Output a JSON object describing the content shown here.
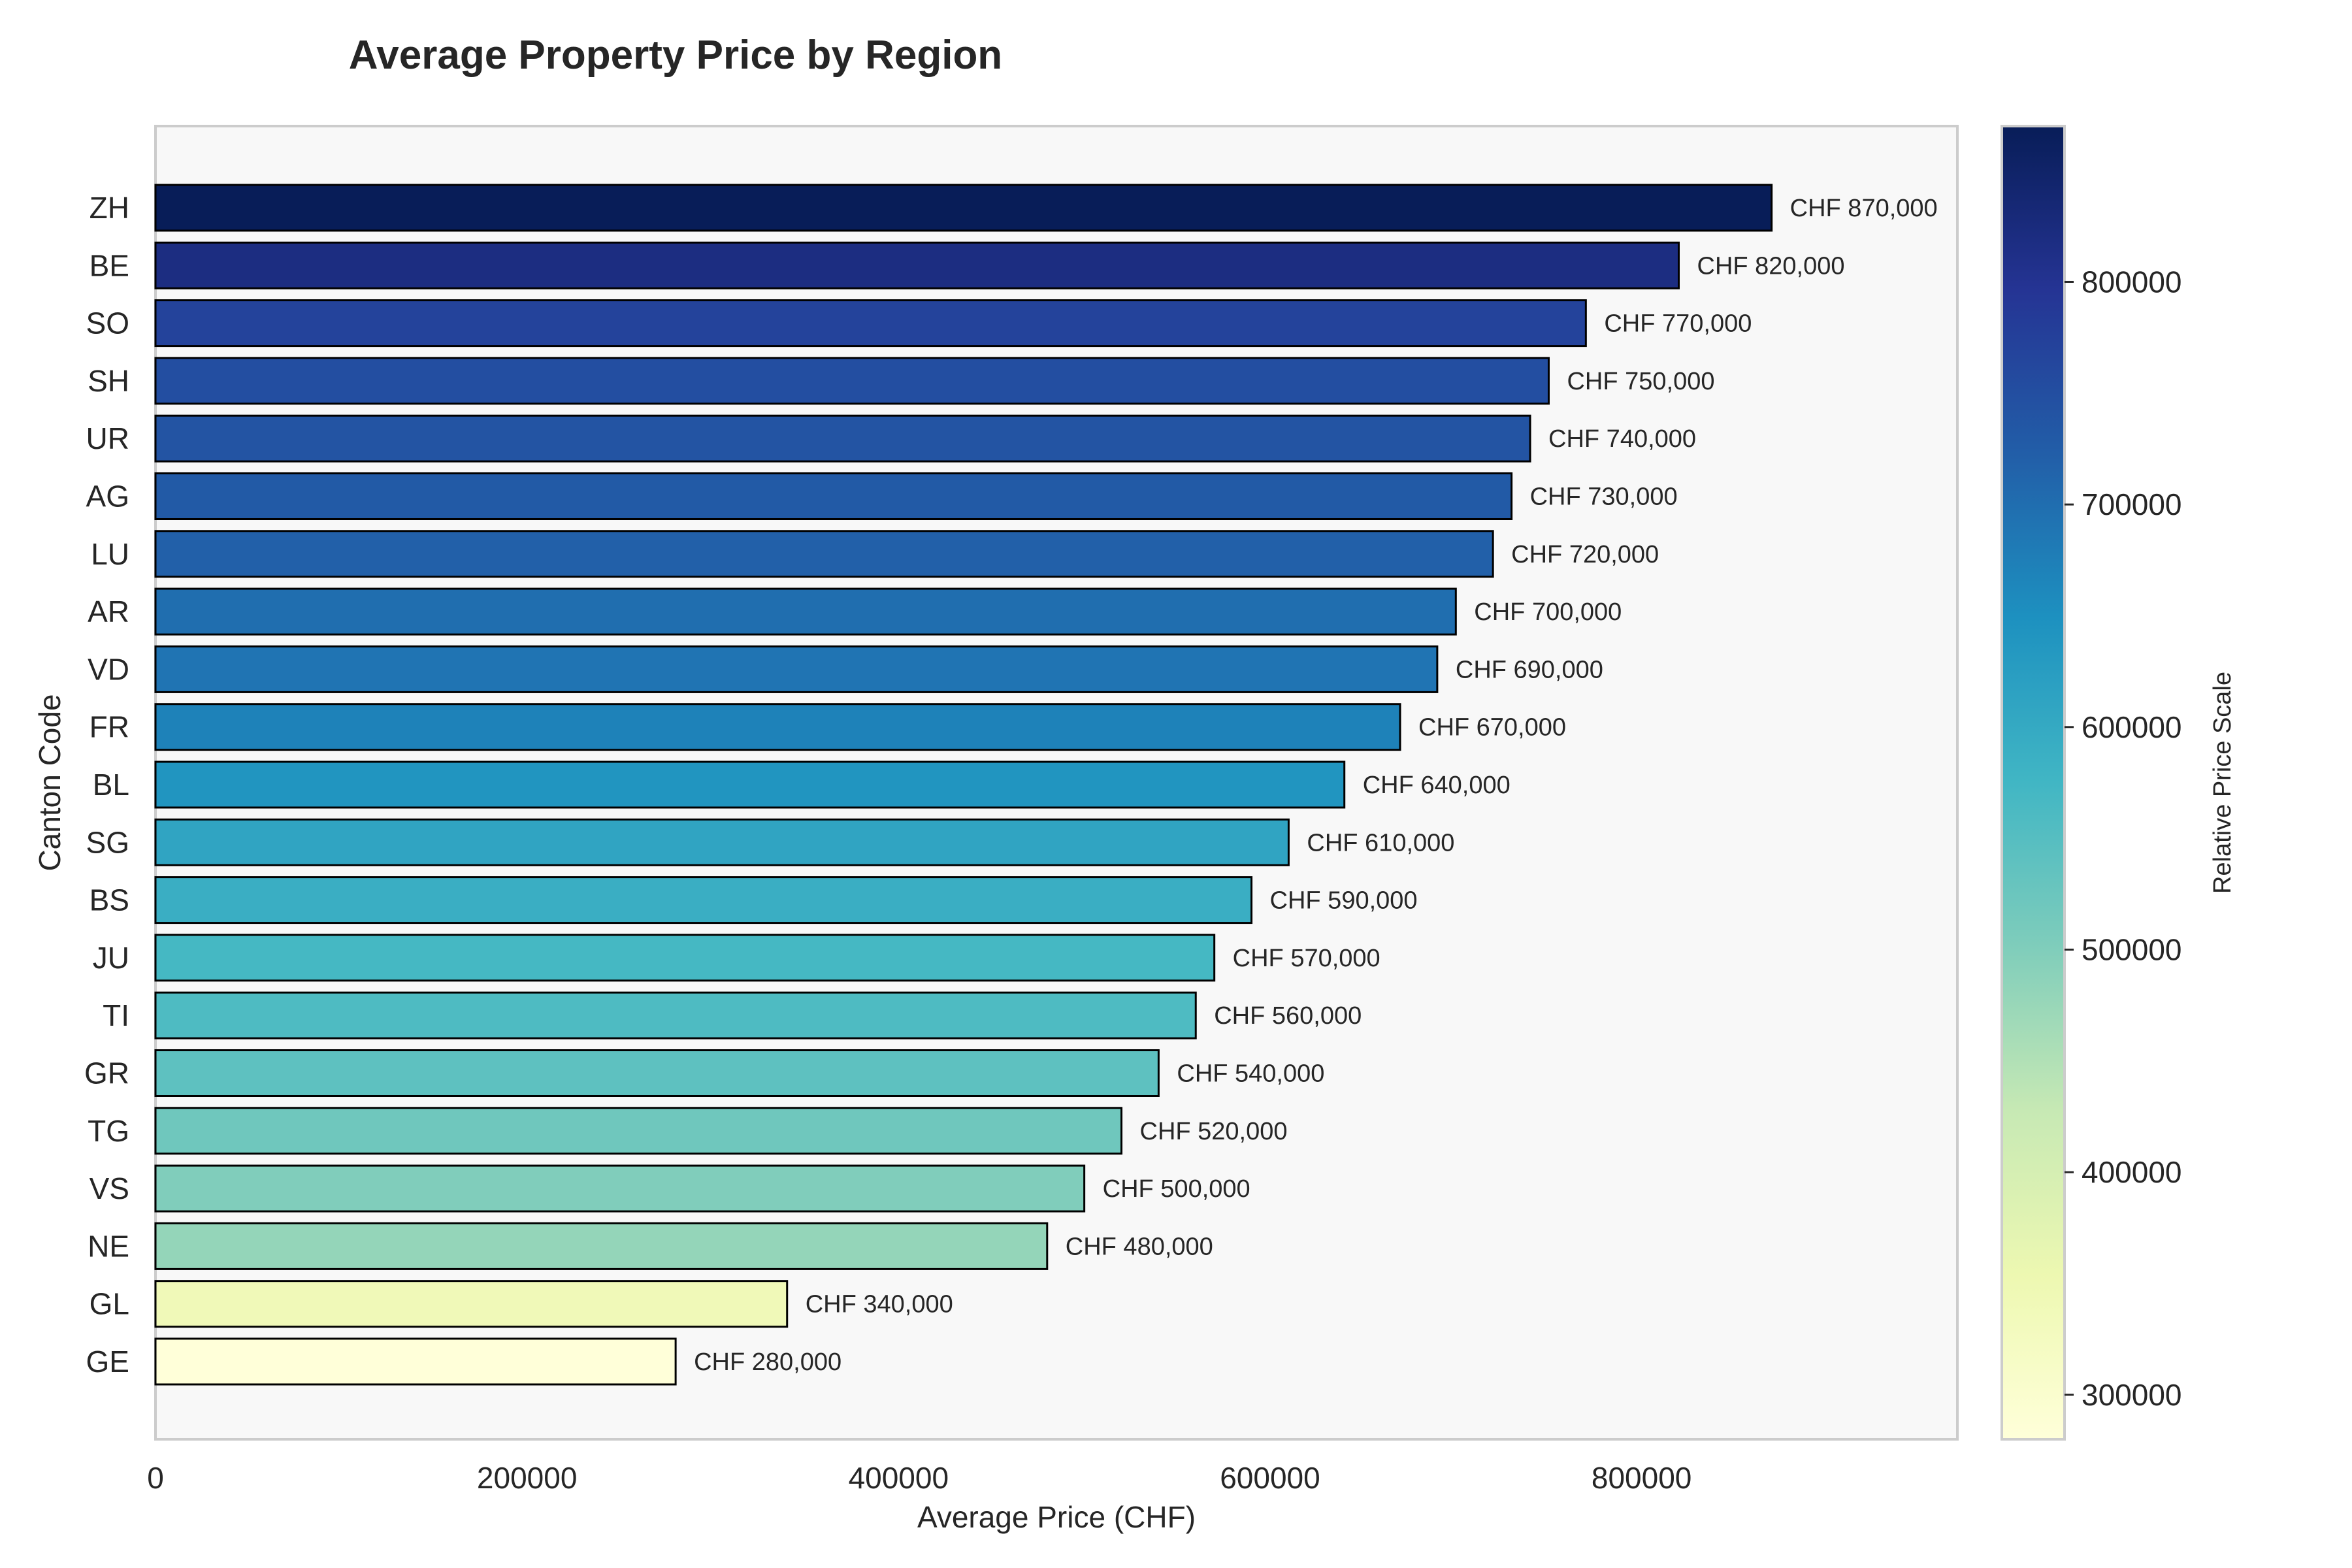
{
  "chart_data": {
    "type": "bar",
    "orientation": "horizontal",
    "title": "Average Property Price by Region",
    "xlabel": "Average Price (CHF)",
    "ylabel": "Canton Code",
    "xlim": [
      0,
      970000
    ],
    "xticks": [
      "0",
      "200000",
      "400000",
      "600000",
      "800000"
    ],
    "xtick_values": [
      0,
      200000,
      400000,
      600000,
      800000
    ],
    "grid": false,
    "categories": [
      "ZH",
      "BE",
      "SO",
      "SH",
      "UR",
      "AG",
      "LU",
      "AR",
      "VD",
      "FR",
      "BL",
      "SG",
      "BS",
      "JU",
      "TI",
      "GR",
      "TG",
      "VS",
      "NE",
      "GL",
      "GE"
    ],
    "values": [
      870000,
      820000,
      770000,
      750000,
      740000,
      730000,
      720000,
      700000,
      690000,
      670000,
      640000,
      610000,
      590000,
      570000,
      560000,
      540000,
      520000,
      500000,
      480000,
      340000,
      280000
    ],
    "value_labels": [
      "CHF 870,000",
      "CHF 820,000",
      "CHF 770,000",
      "CHF 750,000",
      "CHF 740,000",
      "CHF 730,000",
      "CHF 720,000",
      "CHF 700,000",
      "CHF 690,000",
      "CHF 670,000",
      "CHF 640,000",
      "CHF 610,000",
      "CHF 590,000",
      "CHF 570,000",
      "CHF 560,000",
      "CHF 540,000",
      "CHF 520,000",
      "CHF 500,000",
      "CHF 480,000",
      "CHF 340,000",
      "CHF 280,000"
    ],
    "colormap": "YlGnBu",
    "colorbar": {
      "label": "Relative Price Scale",
      "range": [
        280000,
        870000
      ],
      "ticks": [
        "300000",
        "400000",
        "500000",
        "600000",
        "700000",
        "800000"
      ],
      "tick_values": [
        300000,
        400000,
        500000,
        600000,
        700000,
        800000
      ]
    },
    "colors": {
      "plot_background": "#f8f8f8",
      "bar_edge": "#000000",
      "frame": "#cccccc"
    }
  }
}
